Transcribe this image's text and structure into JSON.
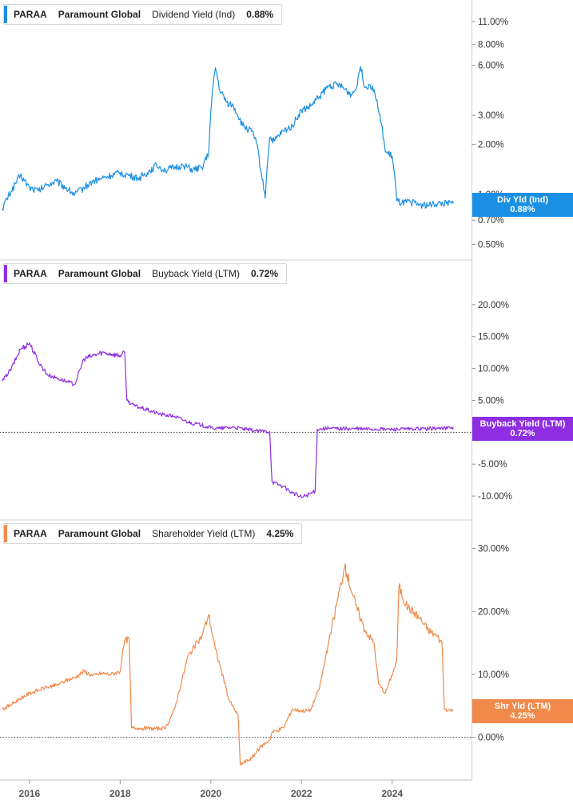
{
  "chart_data": [
    {
      "type": "line",
      "ticker": "PARAA",
      "company": "Paramount Global",
      "metric": "Dividend Yield (Ind)",
      "current_value": "0.88%",
      "badge_label": "Div Yld (Ind)",
      "badge_value": "0.88%",
      "color": "#1a8fe3",
      "scale": "log",
      "ylim": [
        0.45,
        13.0
      ],
      "y_ticks": [
        "11.00%",
        "8.00%",
        "6.00%",
        "3.00%",
        "2.00%",
        "1.00%",
        "0.70%",
        "0.50%"
      ],
      "y_tick_values": [
        11,
        8,
        6,
        3,
        2,
        1,
        0.7,
        0.5
      ],
      "series": [
        {
          "x": [
            2015.4,
            2015.6,
            2015.8,
            2016.0,
            2016.2,
            2016.4,
            2016.6,
            2016.8,
            2017.0,
            2017.2,
            2017.4,
            2017.6,
            2017.8,
            2018.0,
            2018.2,
            2018.4,
            2018.6,
            2018.8,
            2019.0,
            2019.2,
            2019.4,
            2019.6,
            2019.8,
            2019.95,
            2020.1,
            2020.2,
            2020.35,
            2020.5,
            2020.7,
            2020.9,
            2021.0,
            2021.1,
            2021.2,
            2021.3,
            2021.4,
            2021.6,
            2021.8,
            2022.0,
            2022.2,
            2022.4,
            2022.6,
            2022.8,
            2023.0,
            2023.1,
            2023.2,
            2023.3,
            2023.4,
            2023.5,
            2023.6,
            2023.7,
            2023.85,
            2024.0,
            2024.1,
            2024.2,
            2024.4,
            2024.6,
            2024.8,
            2025.0,
            2025.2,
            2025.35
          ],
          "values": [
            0.82,
            1.05,
            1.3,
            1.1,
            1.05,
            1.15,
            1.2,
            1.1,
            1.0,
            1.1,
            1.2,
            1.25,
            1.3,
            1.35,
            1.3,
            1.25,
            1.35,
            1.5,
            1.4,
            1.45,
            1.5,
            1.4,
            1.45,
            1.75,
            5.8,
            4.2,
            3.6,
            3.4,
            2.6,
            2.4,
            2.1,
            1.4,
            0.95,
            2.2,
            2.1,
            2.4,
            2.6,
            3.2,
            3.4,
            3.9,
            4.5,
            4.6,
            4.2,
            4.0,
            4.3,
            5.9,
            4.4,
            4.6,
            4.3,
            3.2,
            1.8,
            1.7,
            0.92,
            0.88,
            0.9,
            0.87,
            0.86,
            0.88,
            0.88,
            0.88
          ]
        }
      ]
    },
    {
      "type": "line",
      "ticker": "PARAA",
      "company": "Paramount Global",
      "metric": "Buyback Yield (LTM)",
      "current_value": "0.72%",
      "badge_label": "Buyback Yield (LTM)",
      "badge_value": "0.72%",
      "color": "#8e2de2",
      "ylim": [
        -12.5,
        25.5
      ],
      "y_ticks": [
        "20.00%",
        "15.00%",
        "10.00%",
        "5.00%",
        "-5.00%",
        "-10.00%"
      ],
      "y_tick_values": [
        20,
        15,
        10,
        5,
        -5,
        -10
      ],
      "series": [
        {
          "x": [
            2015.4,
            2015.6,
            2015.8,
            2016.0,
            2016.2,
            2016.4,
            2016.6,
            2016.8,
            2017.0,
            2017.2,
            2017.4,
            2017.6,
            2017.8,
            2018.0,
            2018.1,
            2018.15,
            2018.3,
            2018.6,
            2018.9,
            2019.2,
            2019.5,
            2019.8,
            2020.0,
            2020.2,
            2020.5,
            2020.8,
            2021.0,
            2021.3,
            2021.35,
            2021.6,
            2021.8,
            2022.0,
            2022.3,
            2022.35,
            2022.6,
            2023.0,
            2023.5,
            2024.0,
            2024.5,
            2025.0,
            2025.35
          ],
          "values": [
            8,
            10,
            13,
            14,
            11,
            9,
            8.5,
            8,
            7.5,
            11.5,
            12,
            12.5,
            12.3,
            12,
            12.5,
            5,
            4.2,
            3.5,
            2.8,
            2.5,
            1.6,
            1.1,
            0.7,
            0.6,
            0.8,
            0.4,
            0.2,
            0.1,
            -7.8,
            -8.5,
            -9.5,
            -10.2,
            -9.3,
            0.5,
            0.6,
            0.55,
            0.5,
            0.45,
            0.5,
            0.6,
            0.72
          ]
        }
      ],
      "zero_line": true
    },
    {
      "type": "line",
      "ticker": "PARAA",
      "company": "Paramount Global",
      "metric": "Shareholder Yield (LTM)",
      "current_value": "4.25%",
      "badge_label": "Shr Yld (LTM)",
      "badge_value": "4.25%",
      "color": "#f0894a",
      "ylim": [
        -5.5,
        33
      ],
      "y_ticks": [
        "30.00%",
        "20.00%",
        "10.00%",
        "0.00%"
      ],
      "y_tick_values": [
        30,
        20,
        10,
        0
      ],
      "series": [
        {
          "x": [
            2015.4,
            2015.6,
            2015.8,
            2016.0,
            2016.2,
            2016.4,
            2016.6,
            2016.8,
            2017.0,
            2017.2,
            2017.4,
            2017.6,
            2017.8,
            2018.0,
            2018.1,
            2018.2,
            2018.25,
            2018.4,
            2018.6,
            2018.9,
            2019.0,
            2019.2,
            2019.5,
            2019.8,
            2019.95,
            2020.1,
            2020.2,
            2020.4,
            2020.6,
            2020.65,
            2020.9,
            2021.1,
            2021.3,
            2021.35,
            2021.6,
            2021.8,
            2022.0,
            2022.2,
            2022.4,
            2022.6,
            2022.8,
            2022.95,
            2023.0,
            2023.2,
            2023.4,
            2023.6,
            2023.7,
            2023.85,
            2024.1,
            2024.15,
            2024.3,
            2024.6,
            2024.8,
            2025.0,
            2025.1,
            2025.15,
            2025.35
          ],
          "values": [
            4.5,
            5.2,
            6.2,
            7,
            7.5,
            8,
            8.3,
            9,
            9.5,
            10.5,
            9.8,
            10.2,
            10,
            10.5,
            15.4,
            15.6,
            1.5,
            1.5,
            1.4,
            1.4,
            1.4,
            4.5,
            13,
            16,
            19.5,
            14,
            11.5,
            6,
            3.5,
            -4.3,
            -3.3,
            -1.5,
            -0.4,
            0.8,
            1.5,
            4.5,
            4.2,
            4.3,
            8,
            15,
            22,
            27,
            26,
            21,
            17,
            15,
            8.5,
            7,
            12,
            24,
            21,
            19,
            17,
            16,
            15,
            4.5,
            4.25
          ]
        }
      ],
      "zero_line": true
    }
  ],
  "x_ticks": [
    "2016",
    "2018",
    "2020",
    "2022",
    "2024"
  ],
  "x_tick_values": [
    2016,
    2018,
    2020,
    2022,
    2024
  ],
  "xlim": [
    2015.35,
    2025.75
  ]
}
